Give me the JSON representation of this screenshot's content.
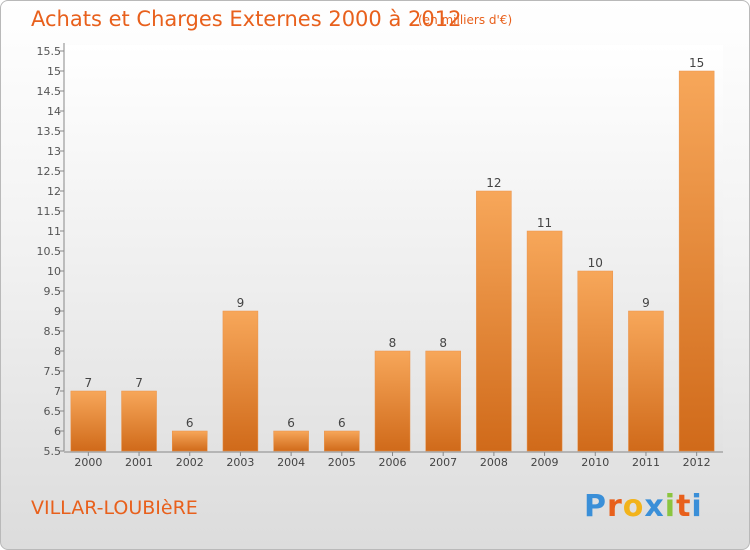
{
  "header": {
    "title": "Achats et Charges Externes 2000 à 2012",
    "subtitle": "(en milliers d'€)"
  },
  "footer": {
    "place": "VILLAR-LOUBIèRE",
    "logo": "Proxiti"
  },
  "colors": {
    "bar_light": "#f7a75a",
    "bar_dark": "#d06a1a",
    "title": "#e8601c",
    "axis": "#888888"
  },
  "chart_data": {
    "type": "bar",
    "title": "Achats et Charges Externes 2000 à 2012",
    "subtitle": "(en milliers d'€)",
    "categories": [
      "2000",
      "2001",
      "2002",
      "2003",
      "2004",
      "2005",
      "2006",
      "2007",
      "2008",
      "2009",
      "2010",
      "2011",
      "2012"
    ],
    "values": [
      7,
      7,
      6,
      9,
      6,
      6,
      8,
      8,
      12,
      11,
      10,
      9,
      15
    ],
    "ylim": [
      5.5,
      15.5
    ],
    "yticks": [
      "5.5",
      "6",
      "6.5",
      "7",
      "7.5",
      "8",
      "8.5",
      "9",
      "9.5",
      "10",
      "10.5",
      "11",
      "11.5",
      "12",
      "12.5",
      "13",
      "13.5",
      "14",
      "14.5",
      "15",
      "15.5"
    ],
    "grid": false
  }
}
